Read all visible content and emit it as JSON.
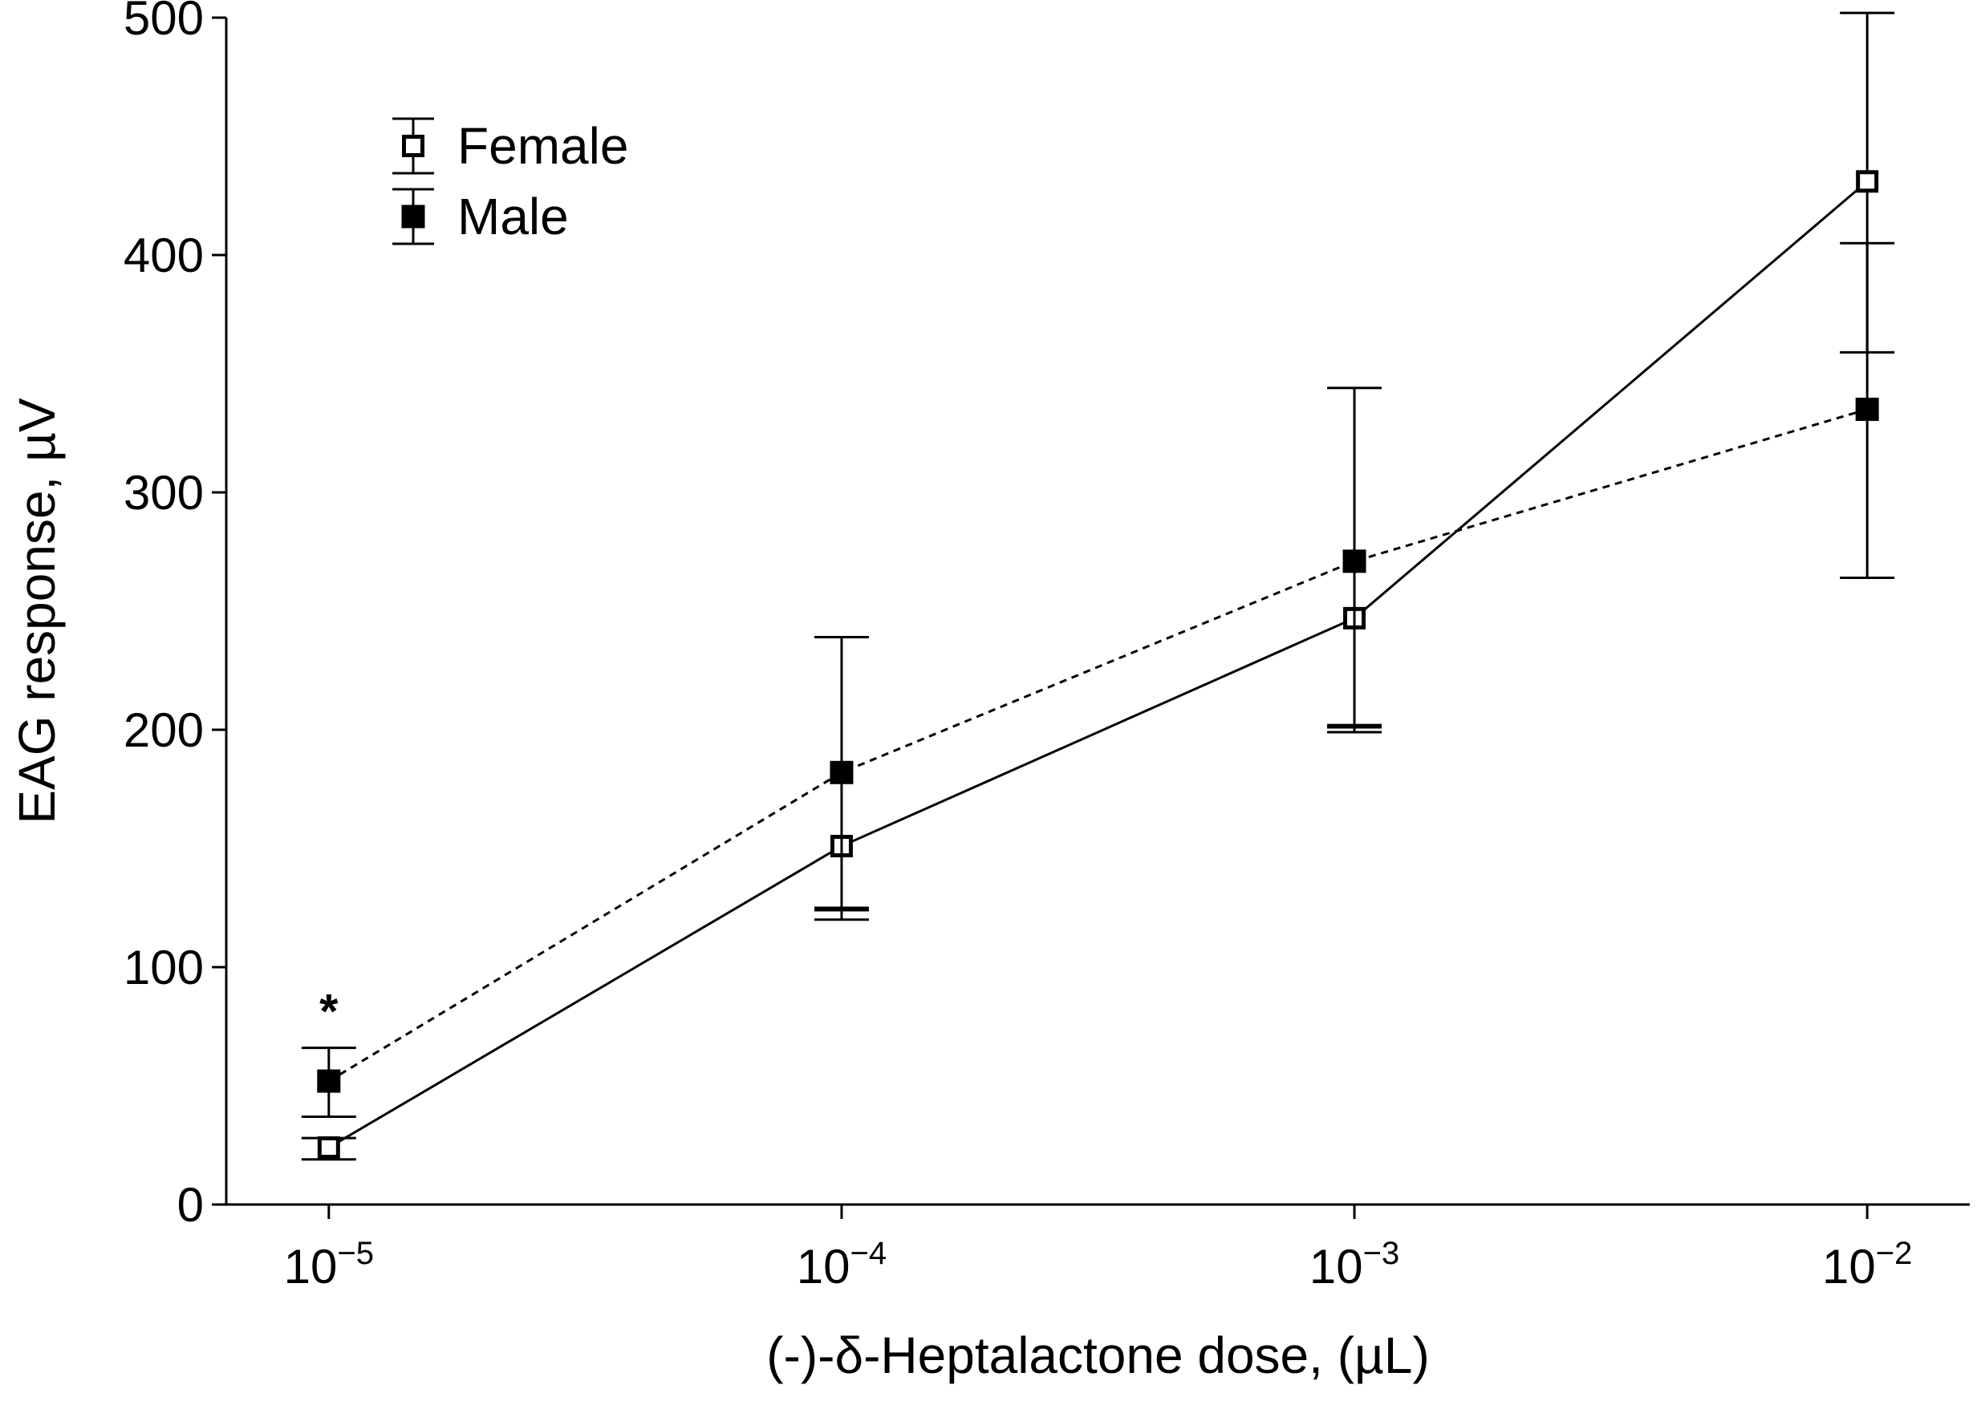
{
  "chart_data": {
    "type": "line",
    "title": "",
    "xlabel": "(-)-δ-Heptalactone dose, (µL)",
    "ylabel": "EAG response, µV",
    "x_categories": [
      {
        "base": "10",
        "exp": "-5"
      },
      {
        "base": "10",
        "exp": "-4"
      },
      {
        "base": "10",
        "exp": "-3"
      },
      {
        "base": "10",
        "exp": "-2"
      }
    ],
    "x_range": [
      -0.2,
      3.2
    ],
    "ylim": [
      0,
      500
    ],
    "yticks": [
      0,
      100,
      200,
      300,
      400,
      500
    ],
    "grid": false,
    "legend_position": "top-left",
    "series": [
      {
        "name": "Female",
        "marker": "open-square",
        "line_style": "solid",
        "values": [
          24,
          151,
          247,
          431
        ],
        "err_low": [
          19,
          120,
          199,
          359
        ],
        "err_high": [
          28,
          124,
          201,
          502
        ]
      },
      {
        "name": "Male",
        "marker": "filled-square",
        "line_style": "dashed",
        "values": [
          52,
          182,
          271,
          335
        ],
        "err_low": [
          37,
          125,
          202,
          264
        ],
        "err_high": [
          66,
          239,
          344,
          405
        ]
      }
    ],
    "annotations": [
      {
        "text": "*",
        "x_index": 0,
        "y": 88
      }
    ],
    "colors": {
      "axis": "#000000",
      "series": "#000000",
      "background": "#ffffff"
    }
  }
}
